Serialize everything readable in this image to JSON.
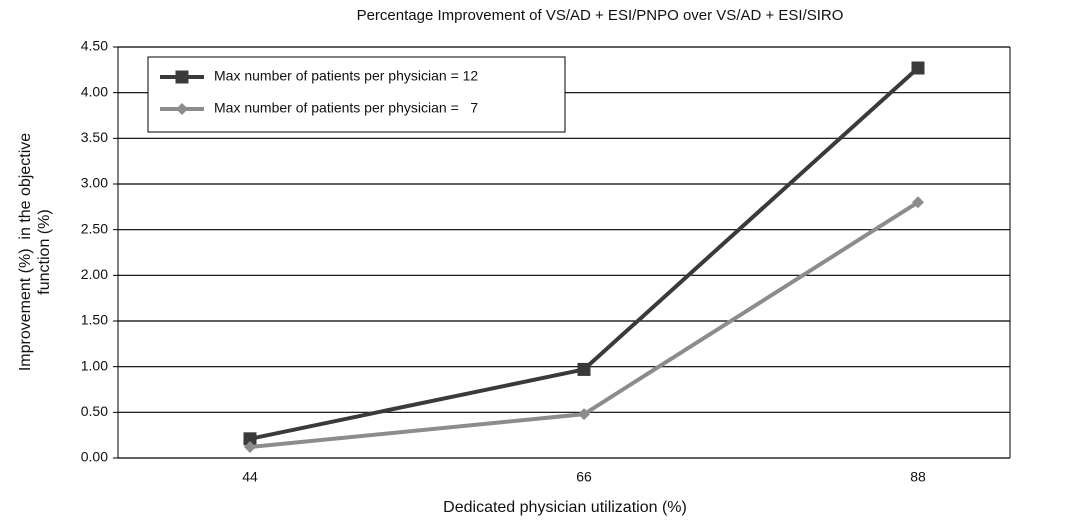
{
  "chart_data": {
    "type": "line",
    "title": "Percentage Improvement of VS/AD + ESI/PNPO over VS/AD + ESI/SIRO",
    "x_label": "Dedicated physician utilization (%)",
    "y_label": [
      "Improvement (%)  in the objective",
      "function (%)"
    ],
    "categories": [
      "44",
      "66",
      "88"
    ],
    "series": [
      {
        "name": "Max number of patients per physician = 12",
        "color": "#3a3a3a",
        "marker": "square",
        "values": [
          0.21,
          0.97,
          4.27
        ]
      },
      {
        "name": "Max number of patients per physician =   7",
        "color": "#8c8c8c",
        "marker": "diamond",
        "values": [
          0.12,
          0.48,
          2.8
        ]
      }
    ],
    "ylim": [
      0,
      4.5
    ],
    "yticks": [
      {
        "value": 0,
        "label": "0.00"
      },
      {
        "value": 0.5,
        "label": "0.50"
      },
      {
        "value": 1,
        "label": "1.00"
      },
      {
        "value": 1.5,
        "label": "1.50"
      },
      {
        "value": 2,
        "label": "2.00"
      },
      {
        "value": 2.5,
        "label": "2.50"
      },
      {
        "value": 3,
        "label": "3.00"
      },
      {
        "value": 3.5,
        "label": "3.50"
      },
      {
        "value": 4,
        "label": "4.00"
      },
      {
        "value": 4.5,
        "label": "4.50"
      }
    ],
    "grid": true,
    "legend": "upper left"
  }
}
